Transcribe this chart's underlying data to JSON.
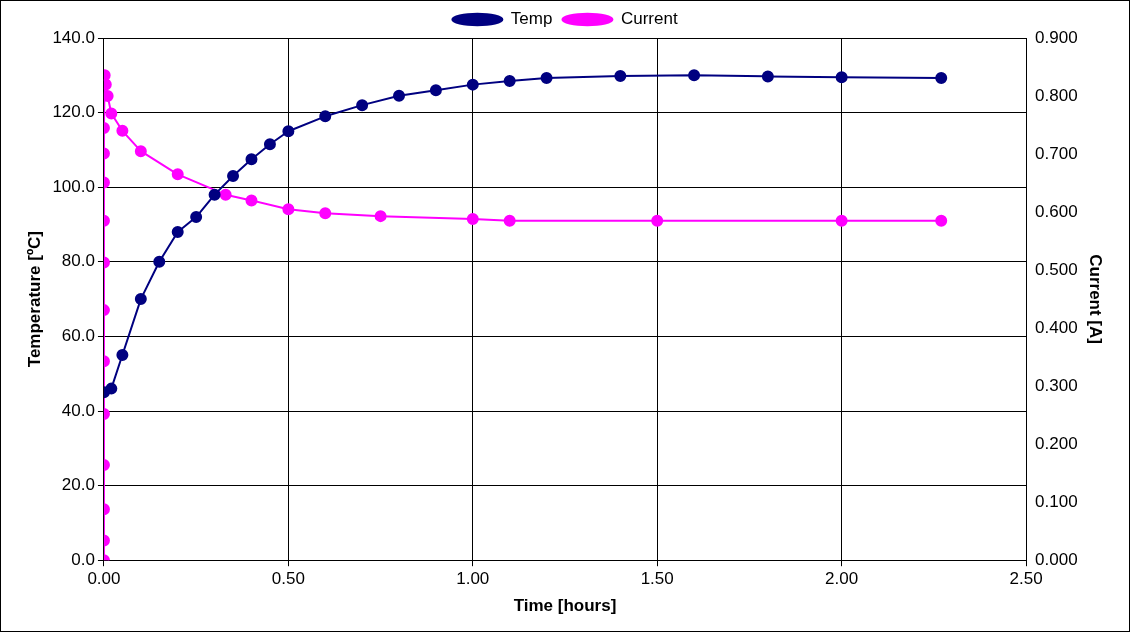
{
  "chart_data": {
    "type": "line",
    "xlabel": "Time [hours]",
    "ylabel": "Temperature [ºC]",
    "y2label": "Current [A]",
    "xlim": [
      0,
      2.5
    ],
    "xticks": [
      {
        "value": 0,
        "label": "0.00"
      },
      {
        "value": 0.5,
        "label": "0.50"
      },
      {
        "value": 1,
        "label": "1.00"
      },
      {
        "value": 1.5,
        "label": "1.50"
      },
      {
        "value": 2,
        "label": "2.00"
      },
      {
        "value": 2.5,
        "label": "2.50"
      }
    ],
    "ylim": [
      0,
      140
    ],
    "yticks": [
      {
        "value": 0,
        "label": "0.0"
      },
      {
        "value": 20,
        "label": "20.0"
      },
      {
        "value": 40,
        "label": "40.0"
      },
      {
        "value": 60,
        "label": "60.0"
      },
      {
        "value": 80,
        "label": "80.0"
      },
      {
        "value": 100,
        "label": "100.0"
      },
      {
        "value": 120,
        "label": "120.0"
      },
      {
        "value": 140,
        "label": "140.0"
      }
    ],
    "y2lim": [
      0,
      0.9
    ],
    "y2ticks": [
      {
        "value": 0,
        "label": "0.000"
      },
      {
        "value": 0.1,
        "label": "0.100"
      },
      {
        "value": 0.2,
        "label": "0.200"
      },
      {
        "value": 0.3,
        "label": "0.300"
      },
      {
        "value": 0.4,
        "label": "0.400"
      },
      {
        "value": 0.5,
        "label": "0.500"
      },
      {
        "value": 0.6,
        "label": "0.600"
      },
      {
        "value": 0.7,
        "label": "0.700"
      },
      {
        "value": 0.8,
        "label": "0.800"
      },
      {
        "value": 0.9,
        "label": "0.900"
      }
    ],
    "grid": true,
    "legend": "top",
    "marker": "circle",
    "line_style": "solid",
    "series": [
      {
        "name": "Temp",
        "color": "#000080",
        "x": [
          0,
          0.02,
          0.05,
          0.1,
          0.15,
          0.2,
          0.25,
          0.3,
          0.35,
          0.4,
          0.45,
          0.5,
          0.6,
          0.7,
          0.8,
          0.9,
          1.0,
          1.1,
          1.2,
          1.4,
          1.6,
          1.8,
          2.0,
          2.27
        ],
        "values": [
          45,
          46,
          55,
          70,
          80,
          88,
          92,
          98,
          103,
          107.5,
          111.5,
          115,
          119,
          122,
          124.5,
          126,
          127.5,
          128.5,
          129.3,
          129.8,
          130,
          129.7,
          129.5,
          129.3
        ]
      },
      {
        "name": "Current",
        "color": "#ff00ff",
        "axis": "y2",
        "x": [
          0,
          0,
          0,
          0,
          0,
          0,
          0,
          0,
          0,
          0,
          0,
          0,
          0.002,
          0.005,
          0.01,
          0.02,
          0.05,
          0.1,
          0.2,
          0.33,
          0.4,
          0.5,
          0.6,
          0.75,
          1.0,
          1.1,
          1.5,
          2.0,
          2.27
        ],
        "values": [
          0,
          0.034,
          0.088,
          0.164,
          0.252,
          0.343,
          0.431,
          0.513,
          0.585,
          0.651,
          0.701,
          0.745,
          0.836,
          0.82,
          0.8,
          0.77,
          0.74,
          0.705,
          0.665,
          0.63,
          0.62,
          0.605,
          0.598,
          0.593,
          0.588,
          0.585,
          0.585,
          0.585,
          0.585
        ]
      }
    ]
  }
}
